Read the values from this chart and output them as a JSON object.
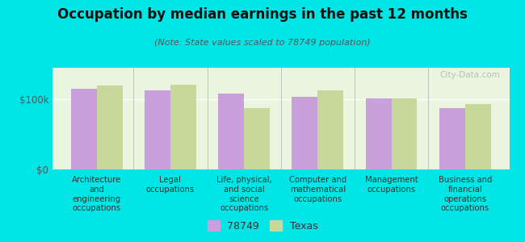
{
  "title": "Occupation by median earnings in the past 12 months",
  "subtitle": "(Note: State values scaled to 78749 population)",
  "categories": [
    "Architecture\nand\nengineering\noccupations",
    "Legal\noccupations",
    "Life, physical,\nand social\nscience\noccupations",
    "Computer and\nmathematical\noccupations",
    "Management\noccupations",
    "Business and\nfinancial\noperations\noccupations"
  ],
  "values_78749": [
    115000,
    113000,
    108000,
    103000,
    101000,
    88000
  ],
  "values_texas": [
    120000,
    121000,
    88000,
    113000,
    101000,
    93000
  ],
  "bar_color_78749": "#c9a0dc",
  "bar_color_texas": "#c8d89a",
  "background_color": "#00e5e5",
  "plot_bg_color": "#eaf5e0",
  "yticks": [
    0,
    100000
  ],
  "ytick_labels": [
    "$0",
    "$100k"
  ],
  "ylim": [
    0,
    145000
  ],
  "legend_label_78749": "78749",
  "legend_label_texas": "Texas",
  "bar_width": 0.35,
  "watermark": "City-Data.com"
}
